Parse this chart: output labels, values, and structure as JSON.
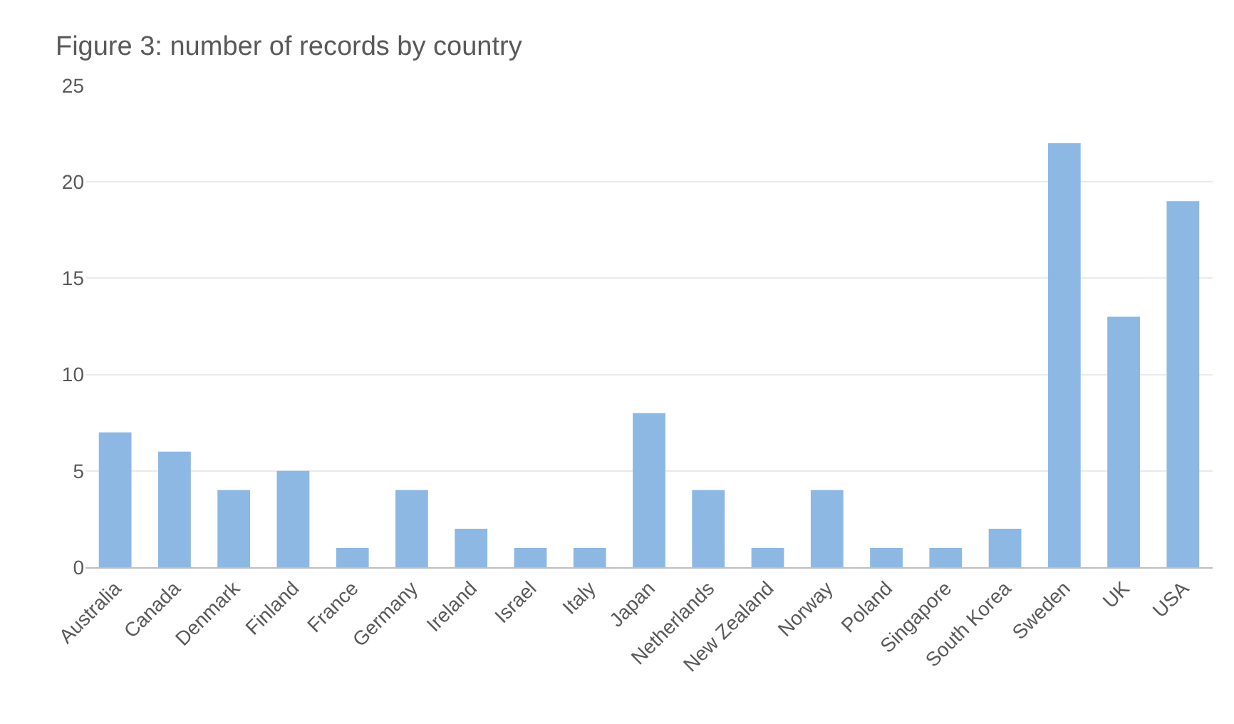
{
  "chart_data": {
    "type": "bar",
    "title": "Figure 3: number of records by country",
    "categories": [
      "Australia",
      "Canada",
      "Denmark",
      "Finland",
      "France",
      "Germany",
      "Ireland",
      "Israel",
      "Italy",
      "Japan",
      "Netherlands",
      "New Zealand",
      "Norway",
      "Poland",
      "Singapore",
      "South Korea",
      "Sweden",
      "UK",
      "USA"
    ],
    "values": [
      7,
      6,
      4,
      5,
      1,
      4,
      2,
      1,
      1,
      8,
      4,
      1,
      4,
      1,
      1,
      2,
      22,
      13,
      19
    ],
    "color": "#8db8e3",
    "ylim": [
      0,
      25
    ],
    "yticks": [
      0,
      5,
      10,
      15,
      20,
      25
    ],
    "grid": "y"
  }
}
